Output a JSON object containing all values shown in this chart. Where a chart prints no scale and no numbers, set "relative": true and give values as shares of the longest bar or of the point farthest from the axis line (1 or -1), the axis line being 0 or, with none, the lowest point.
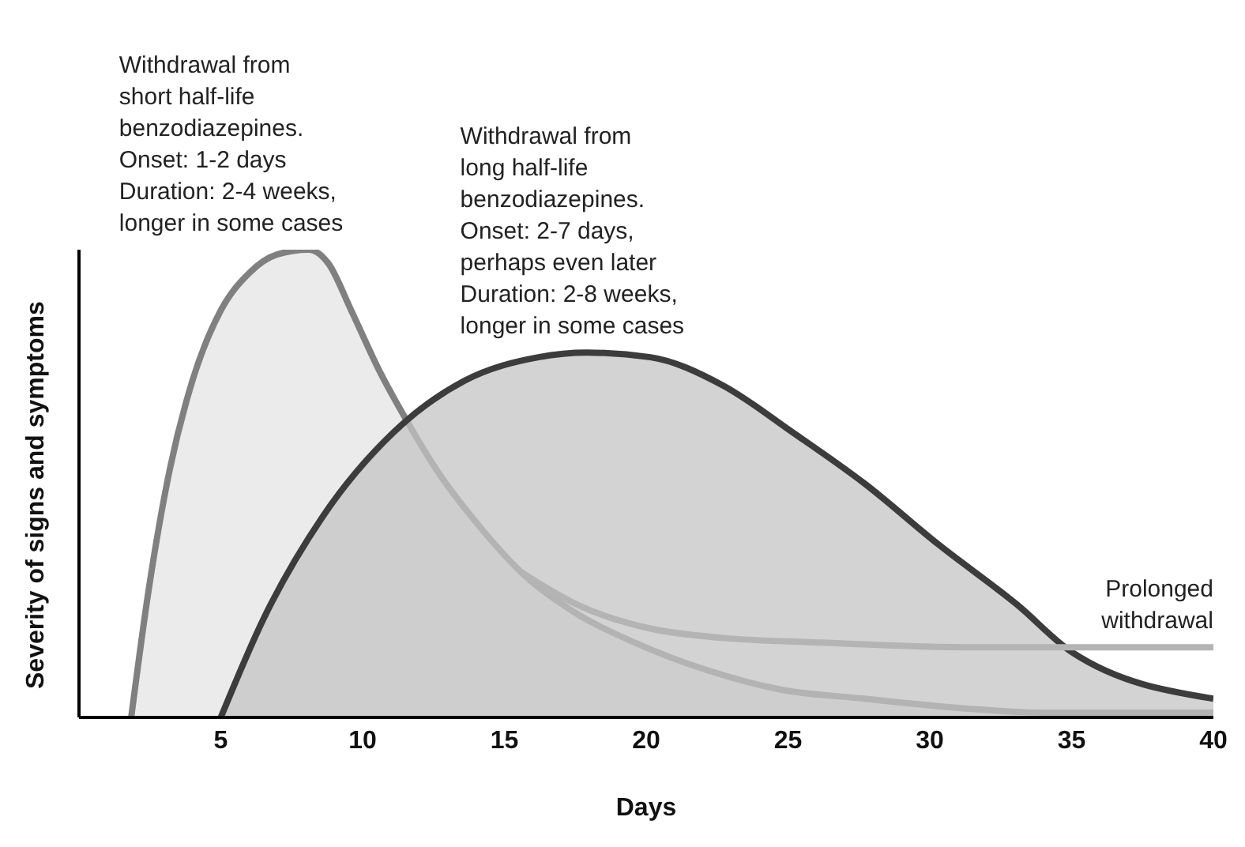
{
  "chart_data": {
    "type": "area",
    "relative": true,
    "xlabel": "Days",
    "ylabel": "Severity of signs and symptoms",
    "xlim": [
      0,
      40
    ],
    "xticks": [
      5,
      10,
      15,
      20,
      25,
      30,
      35,
      40
    ],
    "series": [
      {
        "color": "#808080",
        "x": [
          1.84,
          2.45,
          3.2,
          4.0,
          5,
          6.0,
          7.0,
          8.1,
          8.8,
          9.6,
          10.6,
          11.6,
          12.6,
          14.1,
          15.6,
          17.6,
          19.6,
          22.2,
          24.7,
          27.7,
          31.1,
          34.2,
          40
        ],
        "values": [
          0,
          0.27,
          0.53,
          0.72,
          0.87,
          0.95,
          0.99,
          1.0,
          0.97,
          0.87,
          0.74,
          0.63,
          0.53,
          0.41,
          0.31,
          0.22,
          0.16,
          0.1,
          0.06,
          0.04,
          0.02,
          0.01,
          0.01
        ]
      },
      {
        "color": "#3c3c3c",
        "x": [
          5,
          6.5,
          8.6,
          11.1,
          13.6,
          16.2,
          17.9,
          20.15,
          22.7,
          25.15,
          27.7,
          30.3,
          33.1,
          35,
          40
        ],
        "values": [
          0,
          0.21,
          0.43,
          0.61,
          0.72,
          0.77,
          0.78,
          0.77,
          0.71,
          0.61,
          0.5,
          0.37,
          0.24,
          0.14,
          0.04
        ]
      },
      {
        "type": "line",
        "color": "#b4b4b4",
        "x": [
          15.6,
          17.6,
          20.15,
          22.7,
          26.2,
          31.6,
          40
        ],
        "values": [
          0.31,
          0.24,
          0.19,
          0.17,
          0.16,
          0.15,
          0.15
        ]
      }
    ],
    "annotations": [
      {
        "text": "Withdrawal from\nshort half-life\nbenzodiazepines.\nOnset: 1-2 days\nDuration: 2-4 weeks,\nlonger in some cases",
        "x": 8.1,
        "y": 1.0
      },
      {
        "text": "Withdrawal from\nlong half-life\nbenzodiazepines.\nOnset: 2-7 days,\nperhaps even later\nDuration: 2-8 weeks,\nlonger in some cases",
        "x": 17.9,
        "y": 0.78
      },
      {
        "text": "Prolonged\nwithdrawal",
        "x": 40,
        "y": 0.15
      }
    ]
  }
}
